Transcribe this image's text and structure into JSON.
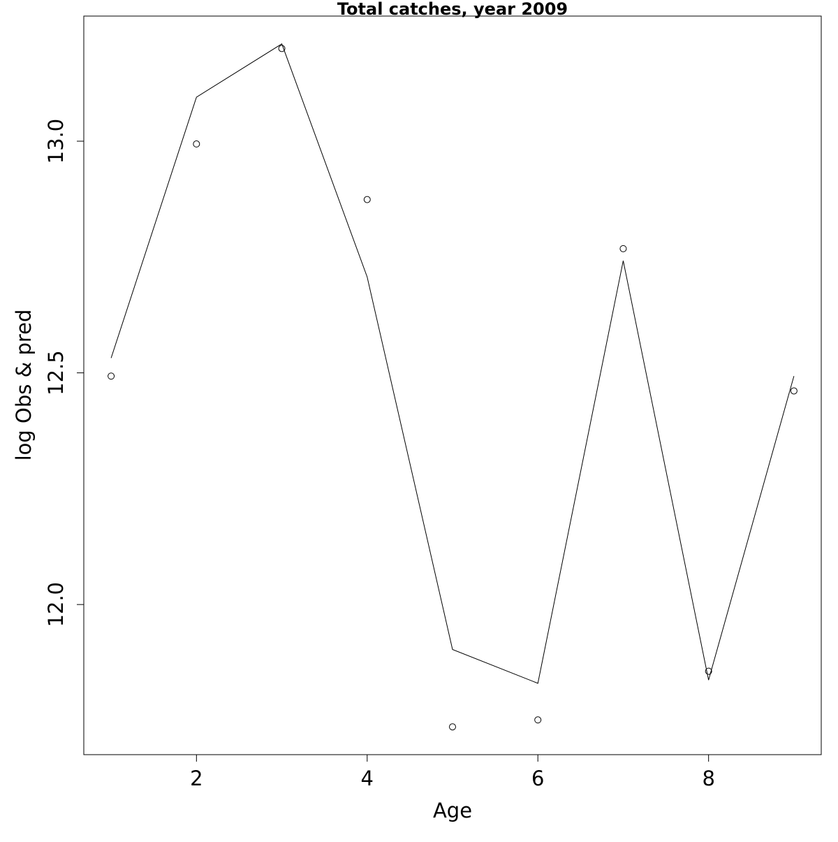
{
  "chart_data": {
    "type": "line",
    "title": "Total catches, year 2009",
    "xlabel": "Age",
    "ylabel": "log Obs & pred",
    "x": [
      1,
      2,
      3,
      4,
      5,
      6,
      7,
      8,
      9
    ],
    "series": [
      {
        "style": "points",
        "marker": "open-circle",
        "values": [
          12.493,
          12.994,
          13.2,
          12.874,
          11.736,
          11.751,
          12.768,
          11.856,
          12.461
        ]
      },
      {
        "style": "line",
        "values": [
          12.532,
          13.095,
          13.21,
          12.707,
          11.903,
          11.83,
          12.742,
          11.837,
          12.493
        ]
      }
    ],
    "xlim": [
      0.68,
      9.32
    ],
    "ylim": [
      11.676,
      13.27
    ],
    "xticks": [
      2,
      4,
      6,
      8
    ],
    "xtick_labels": [
      "2",
      "4",
      "6",
      "8"
    ],
    "yticks": [
      12.0,
      12.5,
      13.0
    ],
    "ytick_labels": [
      "12.0",
      "12.5",
      "13.0"
    ],
    "grid": false,
    "legend": "none",
    "colors": {
      "line": "#000000",
      "points": "#000000",
      "background": "#ffffff"
    }
  }
}
